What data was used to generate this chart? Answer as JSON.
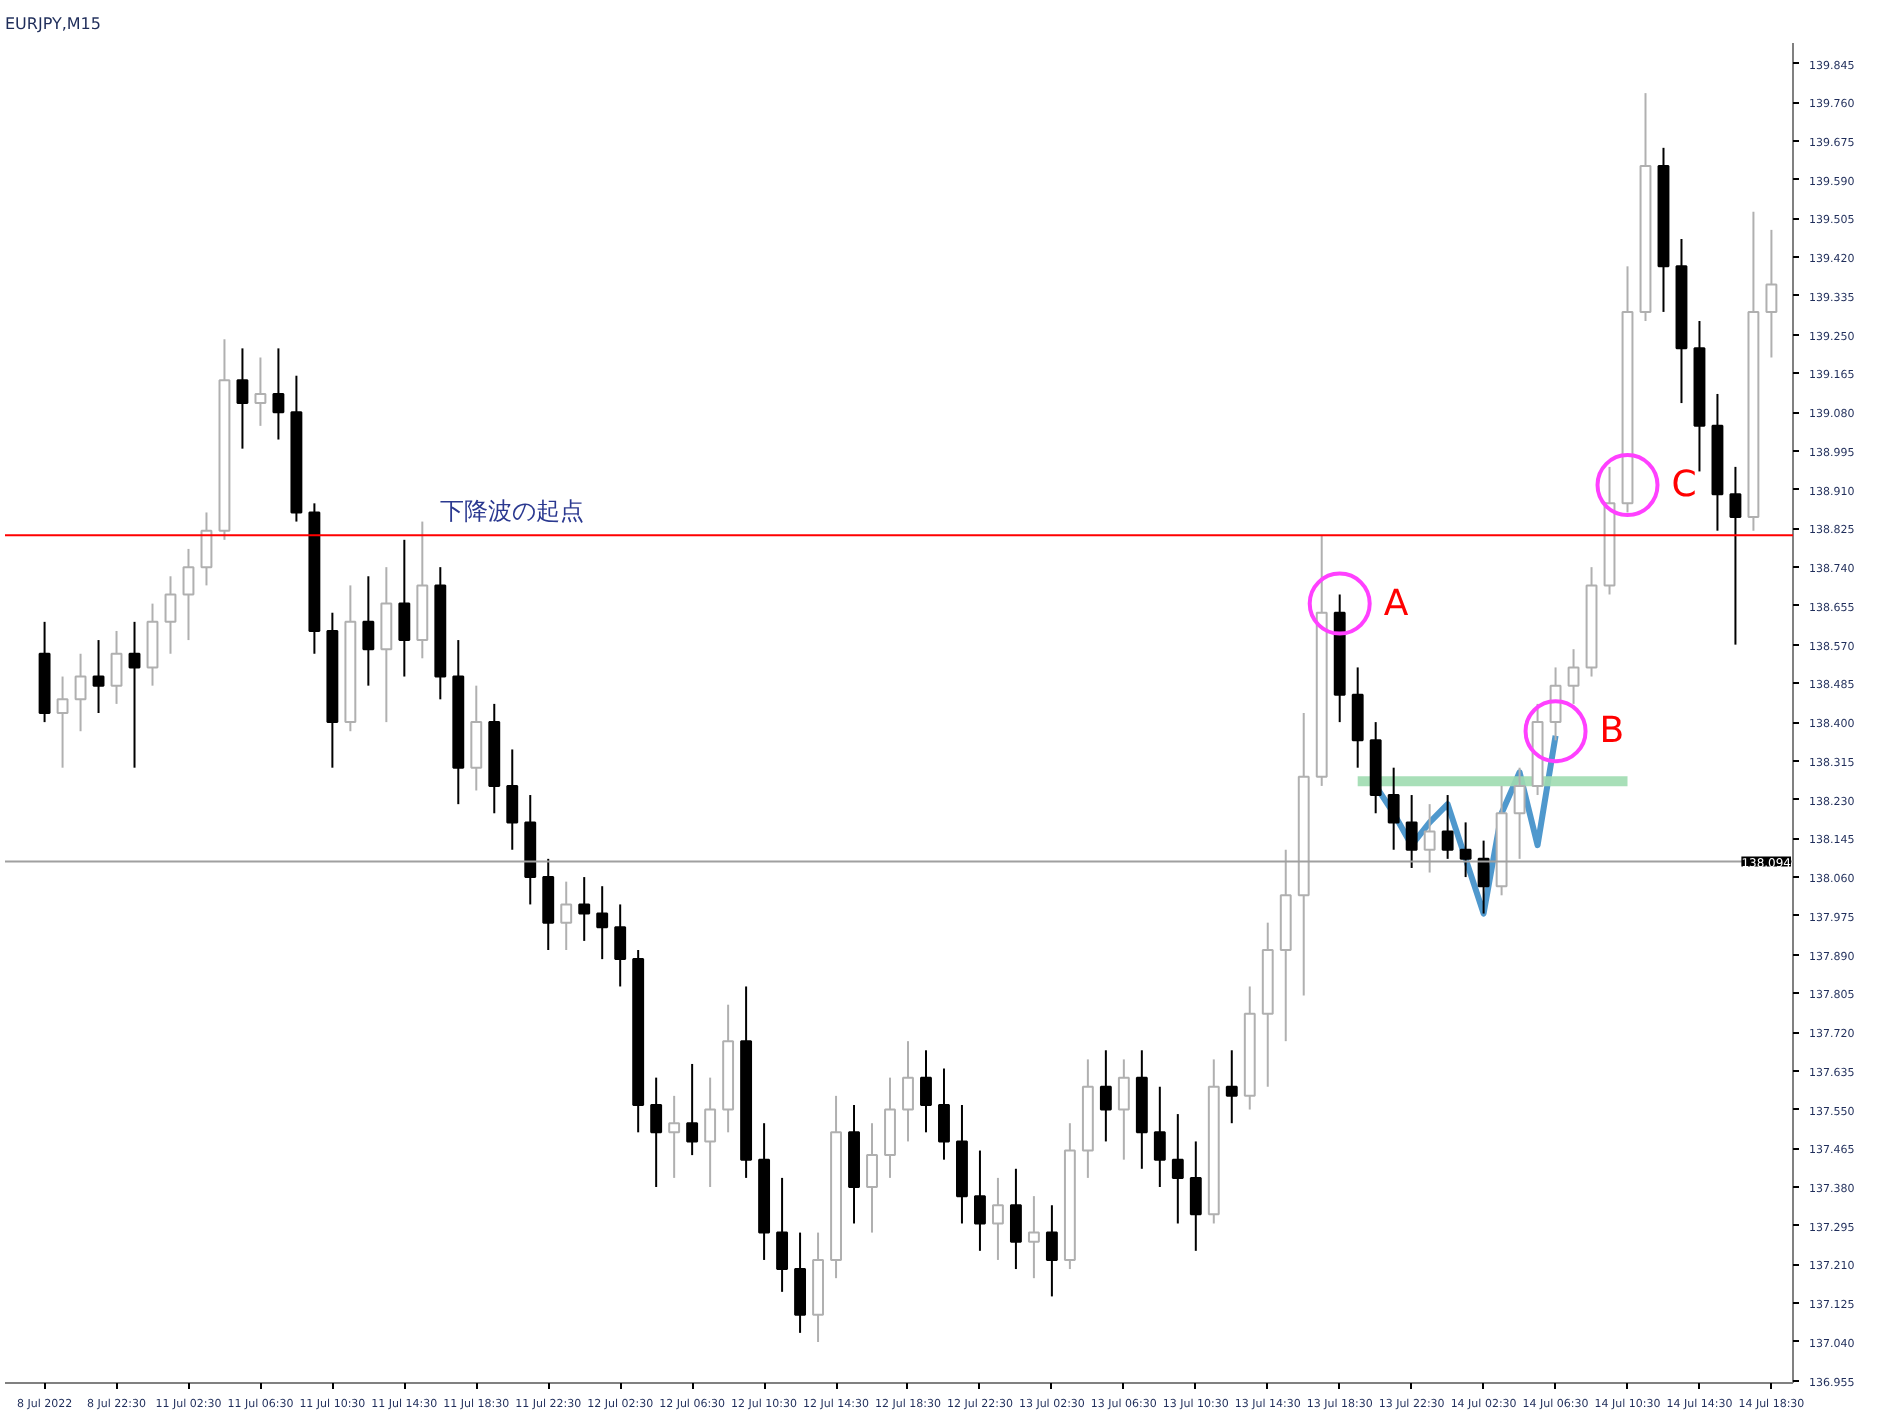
{
  "chart_data": {
    "type": "candlestick",
    "title": "EURJPY,M15",
    "categories": [
      "8 Jul 2022",
      null,
      null,
      null,
      "8 Jul 22:30",
      null,
      null,
      null,
      "11 Jul 02:30",
      null,
      null,
      null,
      "11 Jul 06:30",
      null,
      null,
      null,
      "11 Jul 10:30",
      null,
      null,
      null,
      "11 Jul 14:30",
      null,
      null,
      null,
      "11 Jul 18:30",
      null,
      null,
      null,
      "11 Jul 22:30",
      null,
      null,
      null,
      "12 Jul 02:30",
      null,
      null,
      null,
      "12 Jul 06:30",
      null,
      null,
      null,
      "12 Jul 10:30",
      null,
      null,
      null,
      "12 Jul 14:30",
      null,
      null,
      null,
      "12 Jul 18:30",
      null,
      null,
      null,
      "12 Jul 22:30",
      null,
      null,
      null,
      "13 Jul 02:30",
      null,
      null,
      null,
      "13 Jul 06:30",
      null,
      null,
      null,
      "13 Jul 10:30",
      null,
      null,
      null,
      "13 Jul 14:30",
      null,
      null,
      null,
      "13 Jul 18:30",
      null,
      null,
      null,
      "13 Jul 22:30",
      null,
      null,
      null,
      "14 Jul 02:30",
      null,
      null,
      null,
      "14 Jul 06:30",
      null,
      null,
      null,
      "14 Jul 10:30",
      null,
      null,
      null,
      "14 Jul 14:30",
      null,
      null,
      null,
      "14 Jul 18:30"
    ],
    "ohlc": [
      [
        138.55,
        138.62,
        138.4,
        138.42
      ],
      [
        138.42,
        138.5,
        138.3,
        138.45
      ],
      [
        138.45,
        138.55,
        138.38,
        138.5
      ],
      [
        138.5,
        138.58,
        138.42,
        138.48
      ],
      [
        138.48,
        138.6,
        138.44,
        138.55
      ],
      [
        138.55,
        138.62,
        138.3,
        138.52
      ],
      [
        138.52,
        138.66,
        138.48,
        138.62
      ],
      [
        138.62,
        138.72,
        138.55,
        138.68
      ],
      [
        138.68,
        138.78,
        138.58,
        138.74
      ],
      [
        138.74,
        138.86,
        138.7,
        138.82
      ],
      [
        138.82,
        139.24,
        138.8,
        139.15
      ],
      [
        139.15,
        139.22,
        139.0,
        139.1
      ],
      [
        139.1,
        139.2,
        139.05,
        139.12
      ],
      [
        139.12,
        139.22,
        139.02,
        139.08
      ],
      [
        139.08,
        139.16,
        138.84,
        138.86
      ],
      [
        138.86,
        138.88,
        138.55,
        138.6
      ],
      [
        138.6,
        138.64,
        138.3,
        138.4
      ],
      [
        138.4,
        138.7,
        138.38,
        138.62
      ],
      [
        138.62,
        138.72,
        138.48,
        138.56
      ],
      [
        138.56,
        138.74,
        138.4,
        138.66
      ],
      [
        138.66,
        138.8,
        138.5,
        138.58
      ],
      [
        138.58,
        138.84,
        138.54,
        138.7
      ],
      [
        138.7,
        138.74,
        138.45,
        138.5
      ],
      [
        138.5,
        138.58,
        138.22,
        138.3
      ],
      [
        138.3,
        138.48,
        138.25,
        138.4
      ],
      [
        138.4,
        138.44,
        138.2,
        138.26
      ],
      [
        138.26,
        138.34,
        138.12,
        138.18
      ],
      [
        138.18,
        138.24,
        138.0,
        138.06
      ],
      [
        138.06,
        138.1,
        137.9,
        137.96
      ],
      [
        137.96,
        138.05,
        137.9,
        138.0
      ],
      [
        138.0,
        138.06,
        137.92,
        137.98
      ],
      [
        137.98,
        138.04,
        137.88,
        137.95
      ],
      [
        137.95,
        138.0,
        137.82,
        137.88
      ],
      [
        137.88,
        137.9,
        137.5,
        137.56
      ],
      [
        137.56,
        137.62,
        137.38,
        137.5
      ],
      [
        137.5,
        137.58,
        137.4,
        137.52
      ],
      [
        137.52,
        137.65,
        137.45,
        137.48
      ],
      [
        137.48,
        137.62,
        137.38,
        137.55
      ],
      [
        137.55,
        137.78,
        137.5,
        137.7
      ],
      [
        137.7,
        137.82,
        137.4,
        137.44
      ],
      [
        137.44,
        137.52,
        137.22,
        137.28
      ],
      [
        137.28,
        137.4,
        137.15,
        137.2
      ],
      [
        137.2,
        137.28,
        137.06,
        137.1
      ],
      [
        137.1,
        137.28,
        137.04,
        137.22
      ],
      [
        137.22,
        137.58,
        137.18,
        137.5
      ],
      [
        137.5,
        137.56,
        137.3,
        137.38
      ],
      [
        137.38,
        137.52,
        137.28,
        137.45
      ],
      [
        137.45,
        137.62,
        137.4,
        137.55
      ],
      [
        137.55,
        137.7,
        137.48,
        137.62
      ],
      [
        137.62,
        137.68,
        137.5,
        137.56
      ],
      [
        137.56,
        137.64,
        137.44,
        137.48
      ],
      [
        137.48,
        137.56,
        137.3,
        137.36
      ],
      [
        137.36,
        137.46,
        137.24,
        137.3
      ],
      [
        137.3,
        137.4,
        137.22,
        137.34
      ],
      [
        137.34,
        137.42,
        137.2,
        137.26
      ],
      [
        137.26,
        137.36,
        137.18,
        137.28
      ],
      [
        137.28,
        137.34,
        137.14,
        137.22
      ],
      [
        137.22,
        137.52,
        137.2,
        137.46
      ],
      [
        137.46,
        137.66,
        137.4,
        137.6
      ],
      [
        137.6,
        137.68,
        137.48,
        137.55
      ],
      [
        137.55,
        137.66,
        137.44,
        137.62
      ],
      [
        137.62,
        137.68,
        137.42,
        137.5
      ],
      [
        137.5,
        137.6,
        137.38,
        137.44
      ],
      [
        137.44,
        137.54,
        137.3,
        137.4
      ],
      [
        137.4,
        137.48,
        137.24,
        137.32
      ],
      [
        137.32,
        137.66,
        137.3,
        137.6
      ],
      [
        137.6,
        137.68,
        137.52,
        137.58
      ],
      [
        137.58,
        137.82,
        137.55,
        137.76
      ],
      [
        137.76,
        137.96,
        137.6,
        137.9
      ],
      [
        137.9,
        138.12,
        137.7,
        138.02
      ],
      [
        138.02,
        138.42,
        137.8,
        138.28
      ],
      [
        138.28,
        138.81,
        138.26,
        138.64
      ],
      [
        138.64,
        138.68,
        138.4,
        138.46
      ],
      [
        138.46,
        138.52,
        138.3,
        138.36
      ],
      [
        138.36,
        138.4,
        138.2,
        138.24
      ],
      [
        138.24,
        138.3,
        138.12,
        138.18
      ],
      [
        138.18,
        138.24,
        138.08,
        138.12
      ],
      [
        138.12,
        138.22,
        138.07,
        138.16
      ],
      [
        138.16,
        138.24,
        138.1,
        138.12
      ],
      [
        138.12,
        138.18,
        138.06,
        138.1
      ],
      [
        138.1,
        138.14,
        137.98,
        138.04
      ],
      [
        138.04,
        138.26,
        138.02,
        138.2
      ],
      [
        138.2,
        138.3,
        138.1,
        138.26
      ],
      [
        138.26,
        138.44,
        138.24,
        138.4
      ],
      [
        138.4,
        138.52,
        138.36,
        138.48
      ],
      [
        138.48,
        138.56,
        138.44,
        138.52
      ],
      [
        138.52,
        138.74,
        138.5,
        138.7
      ],
      [
        138.7,
        138.96,
        138.68,
        138.88
      ],
      [
        138.88,
        139.4,
        138.86,
        139.3
      ],
      [
        139.3,
        139.78,
        139.28,
        139.62
      ],
      [
        139.62,
        139.66,
        139.3,
        139.4
      ],
      [
        139.4,
        139.46,
        139.1,
        139.22
      ],
      [
        139.22,
        139.28,
        138.95,
        139.05
      ],
      [
        139.05,
        139.12,
        138.82,
        138.9
      ],
      [
        138.9,
        138.96,
        138.57,
        138.85
      ],
      [
        138.85,
        139.52,
        138.82,
        139.3
      ],
      [
        139.3,
        139.48,
        139.2,
        139.36
      ]
    ],
    "series": [
      {
        "type": "line",
        "color": "#3c8dc8",
        "values": [
          null,
          null,
          null,
          null,
          null,
          null,
          null,
          null,
          null,
          null,
          null,
          null,
          null,
          null,
          null,
          null,
          null,
          null,
          null,
          null,
          null,
          null,
          null,
          null,
          null,
          null,
          null,
          null,
          null,
          null,
          null,
          null,
          null,
          null,
          null,
          null,
          null,
          null,
          null,
          null,
          null,
          null,
          null,
          null,
          null,
          null,
          null,
          null,
          null,
          null,
          null,
          null,
          null,
          null,
          null,
          null,
          null,
          null,
          null,
          null,
          null,
          null,
          null,
          null,
          null,
          null,
          null,
          null,
          null,
          null,
          null,
          null,
          null,
          null,
          138.26,
          138.2,
          138.13,
          138.18,
          138.22,
          138.1,
          137.98,
          138.2,
          138.29,
          138.13,
          138.37,
          null,
          null,
          null,
          null,
          null,
          null,
          null,
          null,
          null,
          null,
          null,
          null
        ]
      },
      {
        "type": "line",
        "color": "#9fdcb0",
        "values": [
          null,
          null,
          null,
          null,
          null,
          null,
          null,
          null,
          null,
          null,
          null,
          null,
          null,
          null,
          null,
          null,
          null,
          null,
          null,
          null,
          null,
          null,
          null,
          null,
          null,
          null,
          null,
          null,
          null,
          null,
          null,
          null,
          null,
          null,
          null,
          null,
          null,
          null,
          null,
          null,
          null,
          null,
          null,
          null,
          null,
          null,
          null,
          null,
          null,
          null,
          null,
          null,
          null,
          null,
          null,
          null,
          null,
          null,
          null,
          null,
          null,
          null,
          null,
          null,
          null,
          null,
          null,
          null,
          null,
          null,
          null,
          null,
          null,
          138.27,
          138.27,
          138.27,
          138.27,
          138.27,
          138.27,
          138.27,
          138.27,
          138.27,
          138.27,
          138.27,
          138.27,
          138.27,
          138.27,
          138.27,
          138.27,
          null,
          null,
          null,
          null,
          null,
          null,
          null,
          null
        ]
      }
    ],
    "ylim": [
      136.95,
      139.89
    ],
    "yticks": [
      139.845,
      {
        "value": 139.76,
        "label": "139.760"
      },
      139.675,
      {
        "value": 139.59,
        "label": "139.590"
      },
      139.505,
      {
        "value": 139.42,
        "label": "139.420"
      },
      139.335,
      {
        "value": 139.25,
        "label": "139.250"
      },
      139.165,
      {
        "value": 139.08,
        "label": "139.080"
      },
      138.995,
      {
        "value": 138.91,
        "label": "138.910"
      },
      138.825,
      {
        "value": 138.74,
        "label": "138.740"
      },
      138.655,
      {
        "value": 138.57,
        "label": "138.570"
      },
      138.485,
      {
        "value": 138.4,
        "label": "138.400"
      },
      138.315,
      {
        "value": 138.23,
        "label": "138.230"
      },
      138.145,
      {
        "value": 138.06,
        "label": "138.060"
      },
      137.975,
      {
        "value": 137.89,
        "label": "137.890"
      },
      137.805,
      {
        "value": 137.72,
        "label": "137.720"
      },
      137.635,
      {
        "value": 137.55,
        "label": "137.550"
      },
      137.465,
      {
        "value": 137.38,
        "label": "137.380"
      },
      137.295,
      {
        "value": 137.21,
        "label": "137.210"
      },
      137.125,
      {
        "value": 137.04,
        "label": "137.040"
      },
      136.955
    ],
    "ref_lines": [
      {
        "axis": "y",
        "value": 138.81,
        "label": "下降波の起点",
        "color": "#ff0000"
      },
      {
        "axis": "y",
        "value": 138.094,
        "label": "138.094",
        "color": "#a0a0a0"
      }
    ],
    "annotations": [
      {
        "text": "A",
        "x": "13 Jul 18:30",
        "y": 138.66
      },
      {
        "text": "B",
        "x": "14 Jul 06:30",
        "y": 138.38
      },
      {
        "text": "C",
        "x": "14 Jul 10:30",
        "y": 138.92
      }
    ],
    "grid": false
  }
}
